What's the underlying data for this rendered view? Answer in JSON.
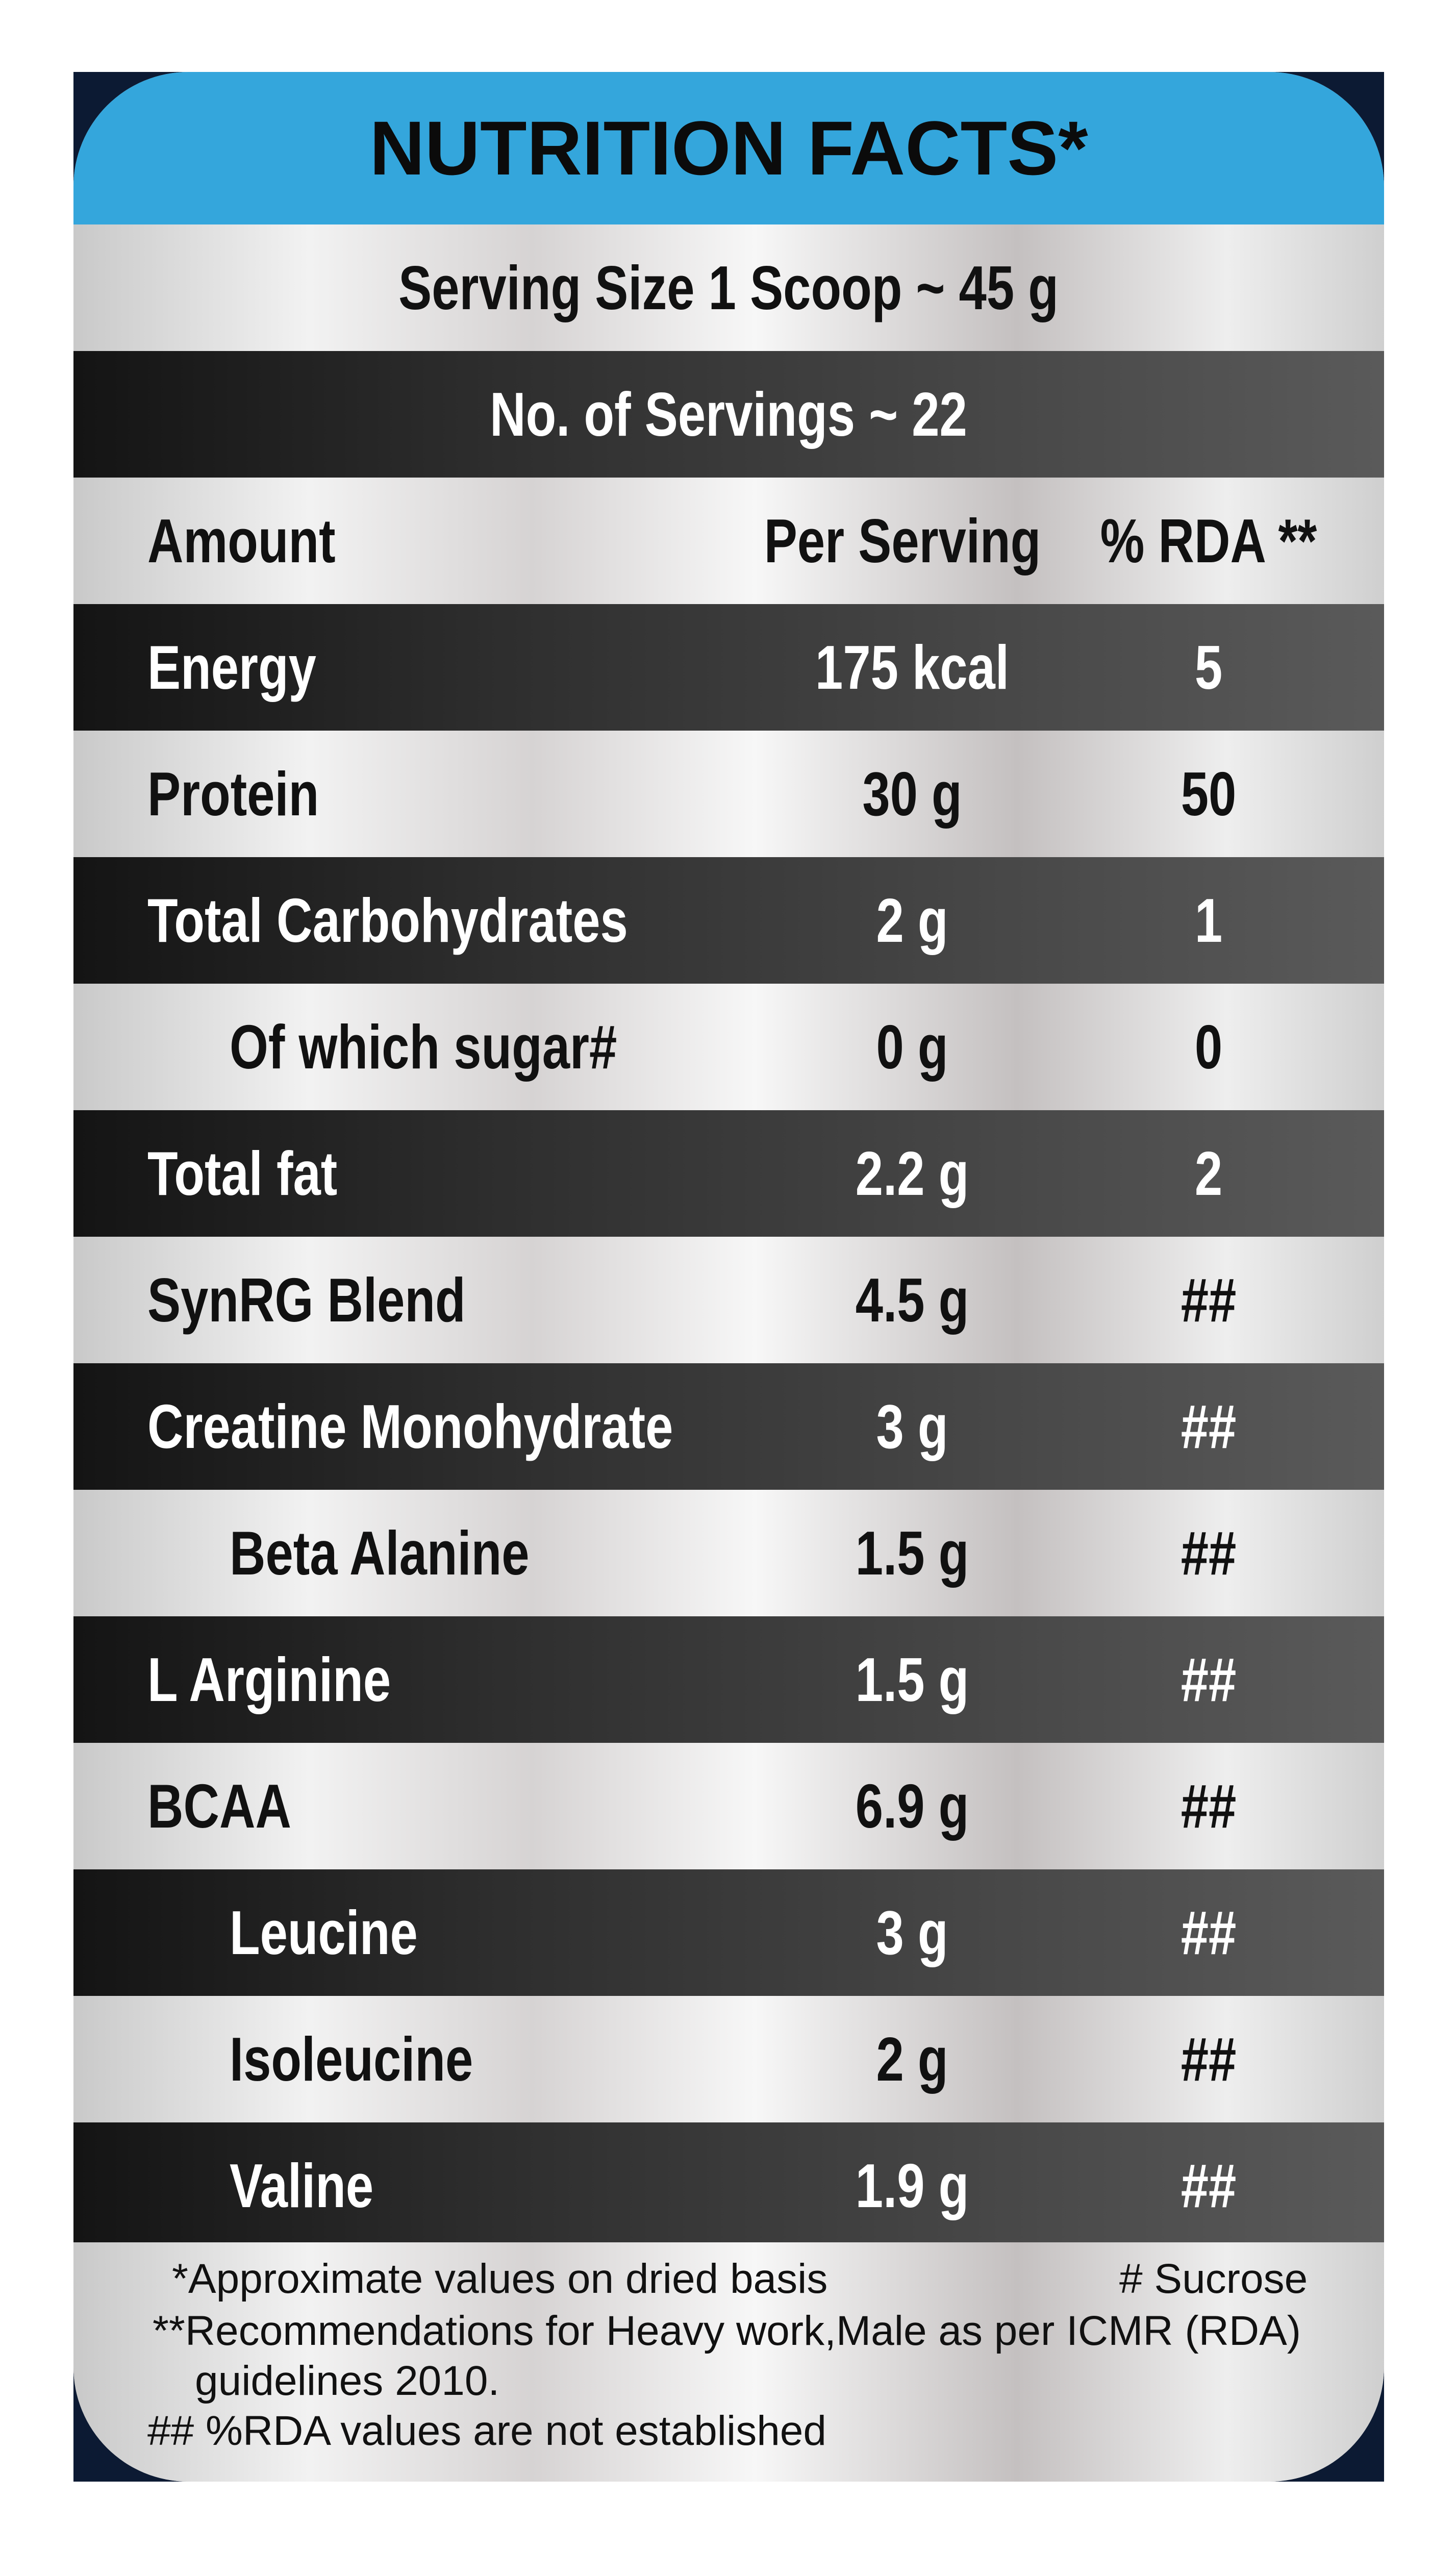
{
  "header": {
    "title": "NUTRITION FACTS*"
  },
  "serving_size": "Serving Size 1 Scoop ~ 45 g",
  "servings": "No. of Servings ~ 22",
  "table": {
    "columns": [
      "Amount",
      "Per Serving",
      "% RDA **"
    ],
    "rows": [
      [
        "Energy",
        "175 kcal",
        "5"
      ],
      [
        "Protein",
        "30 g",
        "50"
      ],
      [
        "Total Carbohydrates",
        "2 g",
        "1"
      ],
      [
        "Of which sugar#",
        "0 g",
        "0"
      ],
      [
        "Total fat",
        "2.2 g",
        "2"
      ],
      [
        "SynRG Blend",
        "4.5 g",
        "##"
      ],
      [
        "Creatine Monohydrate",
        "3 g",
        "##"
      ],
      [
        "Beta Alanine",
        "1.5 g",
        "##"
      ],
      [
        "L Arginine",
        "1.5 g",
        "##"
      ],
      [
        "BCAA",
        "6.9 g",
        "##"
      ],
      [
        "Leucine",
        "3 g",
        "##"
      ],
      [
        "Isoleucine",
        "2 g",
        "##"
      ],
      [
        "Valine",
        "1.9 g",
        "##"
      ]
    ]
  },
  "footnotes": {
    "approx": "*Approximate values on dried basis",
    "sucrose": "# Sucrose",
    "recommendations": "**Recommendations for Heavy work,Male as per ICMR (RDA)",
    "guidelines": "guidelines 2010.",
    "rda": "## %RDA values are not established"
  }
}
